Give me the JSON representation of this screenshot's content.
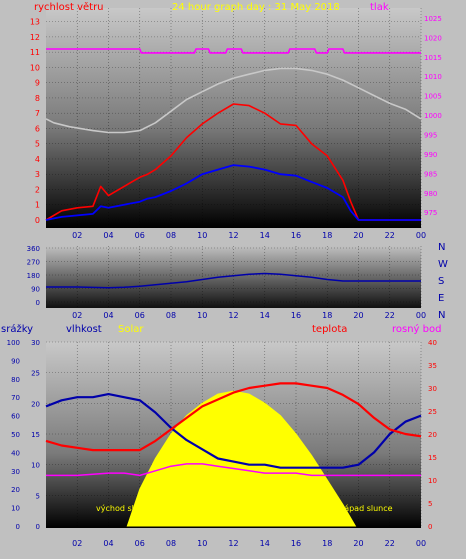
{
  "header": {
    "wind_label": "rychlost větru",
    "title": "24 hour graph day : 31 May 2018",
    "pressure_label": "tlak"
  },
  "colors": {
    "background": "#c0c0c0",
    "wind_gust": "#ff0000",
    "wind_avg": "#0000ff",
    "pressure": "#ff00ff",
    "solar_curve": "#ffff00",
    "temperature": "#ff0000",
    "humidity": "#0000aa",
    "dewpoint": "#ff00ff",
    "title_color": "#ffff00",
    "rain_axis": "#0000ff"
  },
  "chart_data": [
    {
      "type": "line",
      "name": "wind-pressure",
      "x_tick_labels": [
        "02",
        "04",
        "06",
        "08",
        "10",
        "12",
        "14",
        "16",
        "18",
        "20",
        "22",
        "00"
      ],
      "y_left_ticks": [
        "0",
        "1",
        "2",
        "3",
        "4",
        "5",
        "6",
        "7",
        "8",
        "9",
        "10",
        "11",
        "12",
        "13"
      ],
      "y_right_ticks": [
        "975",
        "980",
        "985",
        "990",
        "995",
        "1000",
        "1005",
        "1010",
        "1015",
        "1020",
        "1025"
      ],
      "y_left_range": [
        0,
        13.5
      ],
      "y_right_range": [
        973,
        1026
      ],
      "series": [
        {
          "name": "tlak",
          "axis": "right",
          "color": "#ff00ff",
          "x": [
            0,
            6,
            6.1,
            9.5,
            9.6,
            10.4,
            10.5,
            11.5,
            11.6,
            12.5,
            12.6,
            15.5,
            15.6,
            17.2,
            17.3,
            18,
            18.1,
            19,
            19.1,
            24
          ],
          "y": [
            1017,
            1017,
            1016,
            1016,
            1017,
            1017,
            1016,
            1016,
            1017,
            1017,
            1016,
            1016,
            1017,
            1017,
            1016,
            1016,
            1017,
            1017,
            1016,
            1016
          ]
        },
        {
          "name": "pressure-2",
          "axis": "right",
          "color": "#c8c8c8",
          "x": [
            0,
            0.5,
            1.5,
            3,
            4,
            5,
            6,
            7,
            8,
            9,
            10,
            11,
            12,
            13,
            14,
            15,
            16,
            17,
            18,
            19,
            20,
            21,
            22,
            23,
            24
          ],
          "y": [
            999,
            998,
            997,
            996,
            995.5,
            995.5,
            996,
            998,
            1001,
            1004,
            1006,
            1008,
            1009.5,
            1010.5,
            1011.5,
            1012,
            1012,
            1011.5,
            1010.5,
            1009,
            1007,
            1005,
            1003,
            1001.5,
            999
          ]
        },
        {
          "name": "wind-gust",
          "axis": "left",
          "color": "#ff0000",
          "x": [
            0,
            1,
            2,
            3,
            3.5,
            4,
            5,
            6,
            6.5,
            7,
            8,
            9,
            10,
            11,
            12,
            13,
            14,
            15,
            16,
            17,
            18,
            19,
            19.5,
            20,
            24
          ],
          "y": [
            0,
            0.6,
            0.8,
            0.9,
            2.2,
            1.6,
            2.2,
            2.8,
            3.0,
            3.3,
            4.2,
            5.4,
            6.3,
            7.0,
            7.6,
            7.5,
            7.0,
            6.3,
            6.2,
            5.0,
            4.2,
            2.6,
            1.2,
            0,
            0
          ]
        },
        {
          "name": "wind-avg",
          "axis": "left",
          "color": "#0000ff",
          "x": [
            0,
            1,
            2,
            3,
            3.5,
            4,
            5,
            6,
            6.5,
            7,
            8,
            9,
            10,
            11,
            12,
            13,
            14,
            15,
            16,
            17,
            18,
            19,
            19.5,
            20,
            24
          ],
          "y": [
            0,
            0.2,
            0.3,
            0.4,
            0.9,
            0.8,
            1.0,
            1.2,
            1.4,
            1.5,
            1.9,
            2.4,
            3.0,
            3.3,
            3.6,
            3.5,
            3.3,
            3.0,
            2.9,
            2.5,
            2.1,
            1.5,
            0.6,
            0,
            0
          ]
        }
      ]
    },
    {
      "type": "line",
      "name": "wind-direction",
      "x_tick_labels": [
        "02",
        "04",
        "06",
        "08",
        "10",
        "12",
        "14",
        "16",
        "18",
        "20",
        "22",
        "00"
      ],
      "y_left_ticks": [
        "0",
        "90",
        "180",
        "270",
        "360"
      ],
      "y_range": [
        0,
        360
      ],
      "direction_labels": [
        "N",
        "W",
        "S",
        "E",
        "N"
      ],
      "series": [
        {
          "name": "direction",
          "color": "#0000aa",
          "x": [
            0,
            2,
            4,
            5,
            6,
            7,
            8,
            9,
            10,
            11,
            12,
            13,
            14,
            15,
            16,
            17,
            18,
            19,
            20,
            24
          ],
          "y": [
            100,
            100,
            95,
            98,
            105,
            115,
            125,
            135,
            150,
            165,
            175,
            185,
            190,
            185,
            175,
            165,
            150,
            140,
            140,
            140
          ]
        }
      ]
    },
    {
      "type": "line",
      "name": "humidity-temperature",
      "labels": {
        "rain": "srážky",
        "humidity": "vlhkost",
        "solar": "Solar",
        "temperature": "teplota",
        "dewpoint": "rosný bod",
        "sunrise": "východ slunce",
        "sunset": "západ slunce"
      },
      "x_tick_labels": [
        "02",
        "04",
        "06",
        "08",
        "10",
        "12",
        "14",
        "16",
        "18",
        "20",
        "22",
        "00"
      ],
      "rain_ticks": [
        "0",
        "10",
        "20",
        "30",
        "40",
        "50",
        "60",
        "70",
        "80",
        "90",
        "100"
      ],
      "humidity_ticks": [
        "0",
        "5",
        "10",
        "15",
        "20",
        "25",
        "30"
      ],
      "temp_ticks": [
        "0",
        "5",
        "10",
        "15",
        "20",
        "25",
        "30",
        "35",
        "40"
      ],
      "humidity_range": [
        0,
        30
      ],
      "temp_range": [
        0,
        40
      ],
      "series": [
        {
          "name": "vlhkost",
          "color": "#0000aa",
          "x": [
            0,
            1,
            2,
            3,
            4,
            5,
            6,
            7,
            8,
            9,
            10,
            11,
            12,
            13,
            14,
            15,
            16,
            17,
            18,
            19,
            20,
            21,
            22,
            23,
            24
          ],
          "y": [
            19.5,
            20.5,
            21.0,
            21.0,
            21.5,
            21.0,
            20.5,
            18.5,
            16.0,
            14.0,
            12.5,
            11.0,
            10.5,
            10.0,
            10.0,
            9.5,
            9.5,
            9.5,
            9.5,
            9.5,
            10.0,
            12.0,
            15.0,
            17.0,
            18.0
          ]
        },
        {
          "name": "teplota",
          "color": "#ff0000",
          "x": [
            0,
            1,
            2,
            3,
            4,
            5,
            6,
            7,
            8,
            9,
            10,
            11,
            12,
            13,
            14,
            15,
            16,
            17,
            18,
            19,
            20,
            21,
            22,
            23,
            24
          ],
          "y": [
            18.5,
            17.5,
            17.0,
            16.5,
            16.5,
            16.5,
            16.5,
            18.5,
            21.0,
            23.5,
            26.0,
            27.5,
            29.0,
            30.0,
            30.5,
            31.0,
            31.0,
            30.5,
            30.0,
            28.5,
            26.5,
            23.5,
            21.0,
            20.0,
            19.5
          ]
        },
        {
          "name": "rosný bod",
          "color": "#ff00ff",
          "x": [
            0,
            2,
            4,
            5,
            6,
            7,
            8,
            9,
            10,
            11,
            12,
            13,
            14,
            15,
            16,
            17,
            18,
            19,
            20,
            21,
            22,
            23,
            24
          ],
          "y": [
            11,
            11,
            11.5,
            11.5,
            11,
            12,
            13,
            13.5,
            13.5,
            13,
            12.5,
            12,
            11.5,
            11.5,
            11.5,
            11,
            11,
            11,
            11,
            11,
            11,
            11,
            11
          ]
        },
        {
          "name": "Solar",
          "color": "#ffff00",
          "x": [
            5.2,
            6,
            7,
            8,
            9,
            10,
            11,
            12,
            13,
            14,
            15,
            16,
            17,
            18,
            19,
            19.8
          ],
          "y": [
            0,
            6,
            11,
            15,
            18,
            20,
            21.5,
            22,
            21.5,
            20,
            18,
            15,
            11.5,
            7.5,
            3.5,
            0
          ]
        }
      ]
    }
  ]
}
